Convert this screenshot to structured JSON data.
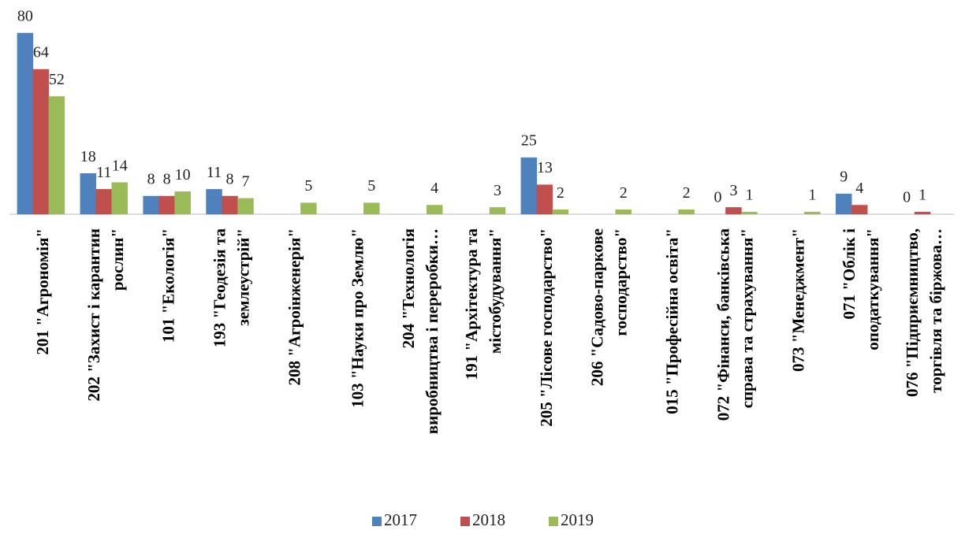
{
  "chart_data": {
    "type": "bar",
    "categories": [
      "201 \"Агрономія\"",
      "202 \"Захист і карантин\nрослин\"",
      "101 \"Екологія\"",
      "193 \"Геодезія та\nземлеустрій\"",
      "208 \"Агроінженерія\"",
      "103 \"Науки про Землю\"",
      "204 \"Технологія\nвиробництва  і переробки…",
      "191 \"Архітектура та\nмістобудування\"",
      "205 \"Лісове господарство\"",
      "206 \"Садово-паркове\nгосподарство\"",
      "015 \"Професійна освіта\"",
      "072 \"Фінанси, банківська\nсправа та страхування\"",
      "073 \"Менеджмент\"",
      "071 \"Облік і\nоподаткування\"",
      "076 \"Підприємництво,\nторгівля та біржова…"
    ],
    "series": [
      {
        "name": "2017",
        "color": "#4f81bd",
        "values": [
          80,
          18,
          8,
          11,
          null,
          null,
          null,
          null,
          25,
          null,
          null,
          0,
          null,
          9,
          0
        ]
      },
      {
        "name": "2018",
        "color": "#c0504d",
        "values": [
          64,
          11,
          8,
          8,
          null,
          null,
          null,
          null,
          13,
          null,
          null,
          3,
          null,
          4,
          1
        ]
      },
      {
        "name": "2019",
        "color": "#9bbb59",
        "values": [
          52,
          14,
          10,
          7,
          5,
          5,
          4,
          3,
          2,
          2,
          2,
          1,
          1,
          null,
          null
        ]
      }
    ],
    "ylim": [
      0,
      80
    ],
    "legend": "bottom"
  }
}
